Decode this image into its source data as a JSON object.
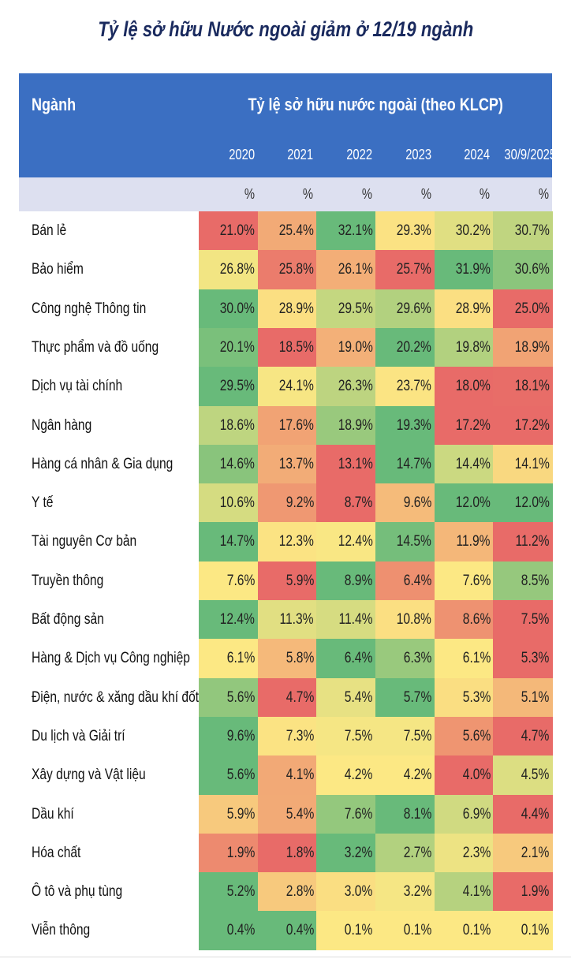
{
  "title": "Tỷ lệ sở hữu Nước ngoài giảm ở 12/19 ngành",
  "table": {
    "header": {
      "sector": "Ngành",
      "group": "Tỷ lệ sở hữu nước ngoài (theo KLCP)",
      "years": [
        "2020",
        "2021",
        "2022",
        "2023",
        "2024",
        "30/9/2025"
      ],
      "units": [
        "%",
        "%",
        "%",
        "%",
        "%",
        "%"
      ]
    },
    "rows": [
      [
        "Bán lẻ",
        "21.0%",
        "25.4%",
        "32.1%",
        "29.3%",
        "30.2%",
        "30.7%"
      ],
      [
        "Bảo hiểm",
        "26.8%",
        "25.8%",
        "26.1%",
        "25.7%",
        "31.9%",
        "30.6%"
      ],
      [
        "Công nghệ Thông tin",
        "30.0%",
        "28.9%",
        "29.5%",
        "29.6%",
        "28.9%",
        "25.0%"
      ],
      [
        "Thực phẩm và đồ uống",
        "20.1%",
        "18.5%",
        "19.0%",
        "20.2%",
        "19.8%",
        "18.9%"
      ],
      [
        "Dịch vụ tài chính",
        "29.5%",
        "24.1%",
        "26.3%",
        "23.7%",
        "18.0%",
        "18.1%"
      ],
      [
        "Ngân hàng",
        "18.6%",
        "17.6%",
        "18.9%",
        "19.3%",
        "17.2%",
        "17.2%"
      ],
      [
        "Hàng cá nhân & Gia dụng",
        "14.6%",
        "13.7%",
        "13.1%",
        "14.7%",
        "14.4%",
        "14.1%"
      ],
      [
        "Y tế",
        "10.6%",
        "9.2%",
        "8.7%",
        "9.6%",
        "12.0%",
        "12.0%"
      ],
      [
        "Tài nguyên Cơ bản",
        "14.7%",
        "12.3%",
        "12.4%",
        "14.5%",
        "11.9%",
        "11.2%"
      ],
      [
        "Truyền thông",
        "7.6%",
        "5.9%",
        "8.9%",
        "6.4%",
        "7.6%",
        "8.5%"
      ],
      [
        "Bất động sản",
        "12.4%",
        "11.3%",
        "11.4%",
        "10.8%",
        "8.6%",
        "7.5%"
      ],
      [
        "Hàng & Dịch vụ Công nghiệp",
        "6.1%",
        "5.8%",
        "6.4%",
        "6.3%",
        "6.1%",
        "5.3%"
      ],
      [
        "Điện, nước & xăng dầu khí đốt",
        "5.6%",
        "4.7%",
        "5.4%",
        "5.7%",
        "5.3%",
        "5.1%"
      ],
      [
        "Du lịch và Giải trí",
        "9.6%",
        "7.3%",
        "7.5%",
        "7.5%",
        "5.6%",
        "4.7%"
      ],
      [
        "Xây dựng và Vật liệu",
        "5.6%",
        "4.1%",
        "4.2%",
        "4.2%",
        "4.0%",
        "4.5%"
      ],
      [
        "Dầu khí",
        "5.9%",
        "5.4%",
        "7.6%",
        "8.1%",
        "6.9%",
        "4.4%"
      ],
      [
        "Hóa chất",
        "1.9%",
        "1.8%",
        "3.2%",
        "2.7%",
        "2.3%",
        "2.1%"
      ],
      [
        "Ô tô và phụ tùng",
        "5.2%",
        "2.8%",
        "3.0%",
        "3.2%",
        "4.1%",
        "1.9%"
      ],
      [
        "Viễn thông",
        "0.4%",
        "0.4%",
        "0.1%",
        "0.1%",
        "0.1%",
        "0.1%"
      ]
    ]
  }
}
